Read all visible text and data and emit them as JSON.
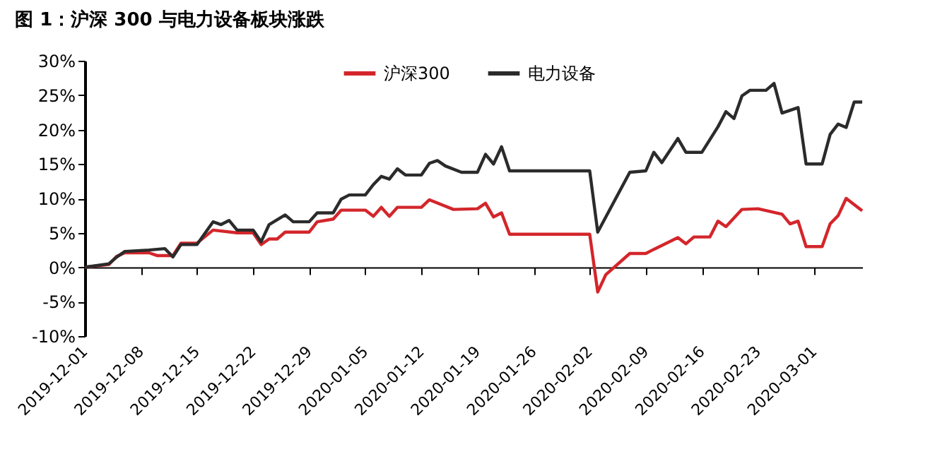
{
  "chart_data": {
    "type": "line",
    "title": "图 1：沪深 300 与电力设备板块涨跌",
    "xlim": [
      "2019-12-01",
      "2020-03-07"
    ],
    "xticks": [
      "2019-12-01",
      "2019-12-08",
      "2019-12-15",
      "2019-12-22",
      "2019-12-29",
      "2020-01-05",
      "2020-01-12",
      "2020-01-19",
      "2020-01-26",
      "2020-02-02",
      "2020-02-09",
      "2020-02-16",
      "2020-02-23",
      "2020-03-01"
    ],
    "ylim": [
      -10,
      30
    ],
    "yticks": [
      {
        "value": -10,
        "label": "-10%"
      },
      {
        "value": -5,
        "label": "-5%"
      },
      {
        "value": 0,
        "label": "0%"
      },
      {
        "value": 5,
        "label": "5%"
      },
      {
        "value": 10,
        "label": "10%"
      },
      {
        "value": 15,
        "label": "15%"
      },
      {
        "value": 20,
        "label": "20%"
      },
      {
        "value": 25,
        "label": "25%"
      },
      {
        "value": 30,
        "label": "30%"
      }
    ],
    "legend": "top",
    "line_style": "solid",
    "series": [
      {
        "name": "沪深300",
        "color": "#d3262b",
        "x": [
          "2019-12-01",
          "2019-12-04",
          "2019-12-05",
          "2019-12-06",
          "2019-12-09",
          "2019-12-10",
          "2019-12-12",
          "2019-12-13",
          "2019-12-15",
          "2019-12-17",
          "2019-12-20",
          "2019-12-22",
          "2019-12-23",
          "2019-12-24",
          "2019-12-25",
          "2019-12-26",
          "2019-12-29",
          "2019-12-30",
          "2020-01-01",
          "2020-01-02",
          "2020-01-05",
          "2020-01-06",
          "2020-01-07",
          "2020-01-08",
          "2020-01-09",
          "2020-01-12",
          "2020-01-13",
          "2020-01-16",
          "2020-01-19",
          "2020-01-20",
          "2020-01-21",
          "2020-01-22",
          "2020-01-23",
          "2020-02-02",
          "2020-02-03",
          "2020-02-04",
          "2020-02-07",
          "2020-02-09",
          "2020-02-10",
          "2020-02-13",
          "2020-02-14",
          "2020-02-15",
          "2020-02-17",
          "2020-02-18",
          "2020-02-19",
          "2020-02-21",
          "2020-02-23",
          "2020-02-26",
          "2020-02-27",
          "2020-02-28",
          "2020-02-29",
          "2020-03-02",
          "2020-03-03",
          "2020-03-04",
          "2020-03-05",
          "2020-03-07"
        ],
        "values": [
          0,
          0.4,
          1.6,
          2.1,
          2.1,
          1.7,
          1.7,
          3.5,
          3.5,
          5.4,
          5.0,
          5.0,
          3.3,
          4.1,
          4.1,
          5.1,
          5.1,
          6.6,
          7.0,
          8.3,
          8.3,
          7.4,
          8.7,
          7.4,
          8.7,
          8.7,
          9.8,
          8.4,
          8.5,
          9.3,
          7.3,
          7.9,
          4.8,
          4.8,
          -3.6,
          -1.1,
          2.0,
          2.0,
          2.6,
          4.3,
          3.4,
          4.4,
          4.4,
          6.7,
          5.9,
          8.4,
          8.5,
          7.7,
          6.3,
          6.7,
          3.0,
          3.0,
          6.3,
          7.5,
          10.0,
          8.2
        ]
      },
      {
        "name": "电力设备",
        "color": "#2b2b2b",
        "x": [
          "2019-12-01",
          "2019-12-04",
          "2019-12-05",
          "2019-12-06",
          "2019-12-09",
          "2019-12-11",
          "2019-12-12",
          "2019-12-13",
          "2019-12-15",
          "2019-12-17",
          "2019-12-18",
          "2019-12-19",
          "2019-12-20",
          "2019-12-22",
          "2019-12-23",
          "2019-12-24",
          "2019-12-26",
          "2019-12-27",
          "2019-12-29",
          "2019-12-30",
          "2020-01-01",
          "2020-01-02",
          "2020-01-03",
          "2020-01-05",
          "2020-01-06",
          "2020-01-07",
          "2020-01-08",
          "2020-01-09",
          "2020-01-10",
          "2020-01-12",
          "2020-01-13",
          "2020-01-14",
          "2020-01-15",
          "2020-01-17",
          "2020-01-19",
          "2020-01-20",
          "2020-01-21",
          "2020-01-22",
          "2020-01-23",
          "2020-02-02",
          "2020-02-03",
          "2020-02-07",
          "2020-02-09",
          "2020-02-10",
          "2020-02-11",
          "2020-02-13",
          "2020-02-14",
          "2020-02-16",
          "2020-02-18",
          "2020-02-19",
          "2020-02-20",
          "2020-02-21",
          "2020-02-22",
          "2020-02-24",
          "2020-02-25",
          "2020-02-26",
          "2020-02-28",
          "2020-02-29",
          "2020-03-02",
          "2020-03-03",
          "2020-03-04",
          "2020-03-05",
          "2020-03-06",
          "2020-03-07"
        ],
        "values": [
          0,
          0.5,
          1.5,
          2.3,
          2.5,
          2.7,
          1.5,
          3.3,
          3.3,
          6.6,
          6.2,
          6.8,
          5.4,
          5.4,
          3.7,
          6.2,
          7.6,
          6.6,
          6.6,
          7.9,
          7.9,
          9.9,
          10.5,
          10.5,
          12.0,
          13.2,
          12.8,
          14.3,
          13.4,
          13.4,
          15.1,
          15.5,
          14.7,
          13.8,
          13.8,
          16.4,
          15.0,
          17.5,
          14.0,
          14.0,
          5.1,
          13.8,
          14.0,
          16.7,
          15.2,
          18.7,
          16.7,
          16.7,
          20.4,
          22.6,
          21.6,
          24.9,
          25.7,
          25.7,
          26.7,
          22.4,
          23.2,
          15.0,
          15.0,
          19.3,
          20.8,
          20.3,
          24.0,
          24.0
        ]
      }
    ]
  }
}
